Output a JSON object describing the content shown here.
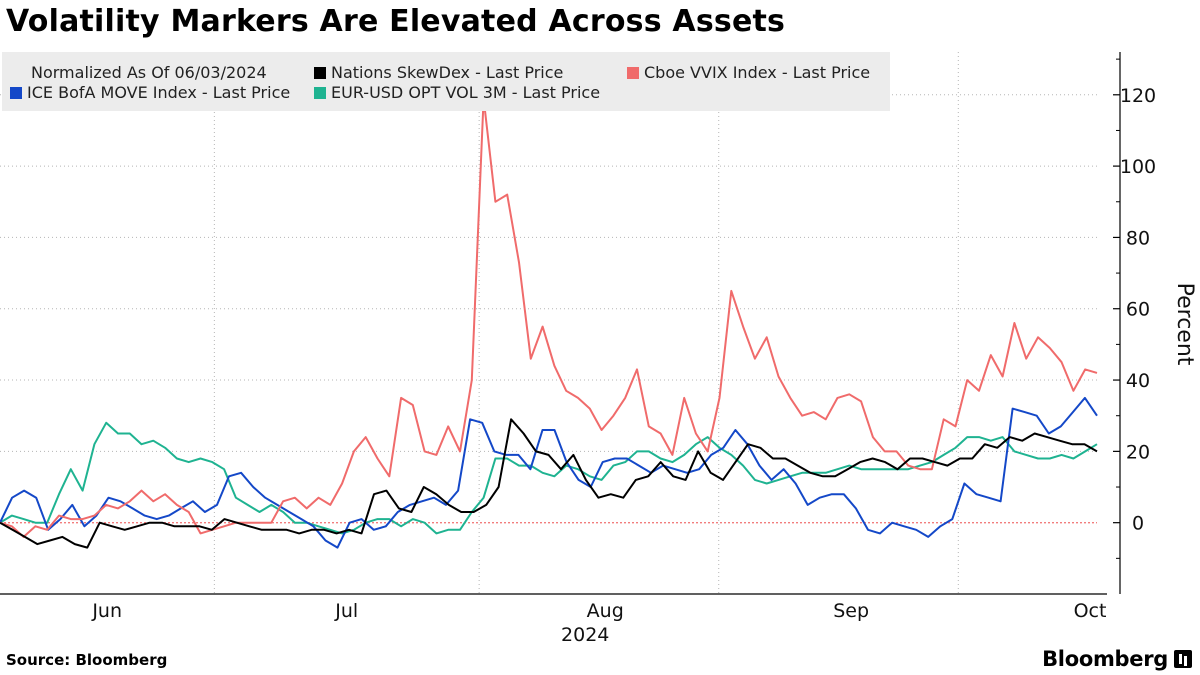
{
  "title": "Volatility Markers Are Elevated Across Assets",
  "source": "Source: Bloomberg",
  "brand": "Bloomberg",
  "chart_data": {
    "type": "line",
    "title": "Volatility Markers Are Elevated Across Assets",
    "ylabel": "Percent",
    "xlabel": "2024",
    "ylim": [
      -20,
      132
    ],
    "yticks": [
      0,
      20,
      40,
      60,
      80,
      100,
      120
    ],
    "x_range": [
      0,
      87
    ],
    "month_labels": [
      {
        "label": "Jun",
        "x": 8.5
      },
      {
        "label": "Jul",
        "x": 27.5
      },
      {
        "label": "Aug",
        "x": 48
      },
      {
        "label": "Sep",
        "x": 67.5
      },
      {
        "label": "Oct",
        "x": 87
      }
    ],
    "month_boundaries": [
      17,
      38,
      57,
      76
    ],
    "year_label": "2024",
    "legend_note": "Normalized As Of 06/03/2024",
    "legend": [
      "Nations SkewDex - Last Price",
      "Cboe VVIX Index - Last Price",
      "ICE BofA MOVE Index - Last Price",
      "EUR-USD OPT VOL 3M - Last Price"
    ],
    "series": [
      {
        "name": "Nations SkewDex - Last Price",
        "color": "#000000",
        "values": [
          0,
          -2,
          -4,
          -6,
          -5,
          -4,
          -6,
          -7,
          0,
          -1,
          -2,
          -1,
          0,
          0,
          -1,
          -1,
          -1,
          -2,
          1,
          0,
          -1,
          -2,
          -2,
          -2,
          -3,
          -2,
          -2,
          -3,
          -2,
          -3,
          8,
          9,
          4,
          3,
          10,
          8,
          5,
          3,
          3,
          5,
          10,
          29,
          25,
          20,
          19,
          15,
          19,
          12,
          7,
          8,
          7,
          12,
          13,
          17,
          13,
          12,
          20,
          14,
          12,
          17,
          22,
          21,
          18,
          18,
          16,
          14,
          13,
          13,
          15,
          17,
          18,
          17,
          15,
          18,
          18,
          17,
          16,
          18,
          18,
          22,
          21,
          24,
          23,
          25,
          24,
          23,
          22,
          22,
          20
        ]
      },
      {
        "name": "Cboe VVIX Index - Last Price",
        "color": "#f06b6b",
        "values": [
          0,
          -1,
          -4,
          -1,
          -2,
          2,
          1,
          1,
          2,
          5,
          4,
          6,
          9,
          6,
          8,
          5,
          3,
          -3,
          -2,
          -1,
          0,
          0,
          0,
          0,
          6,
          7,
          4,
          7,
          5,
          11,
          20,
          24,
          18,
          13,
          35,
          33,
          20,
          19,
          27,
          20,
          40,
          119,
          90,
          92,
          73,
          46,
          55,
          44,
          37,
          35,
          32,
          26,
          30,
          35,
          43,
          27,
          25,
          19,
          35,
          25,
          20,
          35,
          65,
          55,
          46,
          52,
          41,
          35,
          30,
          31,
          29,
          35,
          36,
          34,
          24,
          20,
          20,
          16,
          15,
          15,
          29,
          27,
          40,
          37,
          47,
          41,
          56,
          46,
          52,
          49,
          45,
          37,
          43,
          42
        ]
      },
      {
        "name": "ICE BofA MOVE Index - Last Price",
        "color": "#1448c8",
        "values": [
          0,
          7,
          9,
          7,
          -2,
          1,
          5,
          -1,
          2,
          7,
          6,
          4,
          2,
          1,
          2,
          4,
          6,
          3,
          5,
          13,
          14,
          10,
          7,
          5,
          3,
          1,
          -1,
          -5,
          -7,
          0,
          1,
          -2,
          -1,
          3,
          5,
          6,
          7,
          5,
          9,
          29,
          28,
          20,
          19,
          19,
          15,
          26,
          26,
          17,
          12,
          10,
          17,
          18,
          18,
          16,
          14,
          16,
          15,
          14,
          15,
          19,
          21,
          26,
          22,
          16,
          12,
          15,
          11,
          5,
          7,
          8,
          8,
          4,
          -2,
          -3,
          0,
          -1,
          -2,
          -4,
          -1,
          1,
          11,
          8,
          7,
          6,
          32,
          31,
          30,
          25,
          27,
          31,
          35,
          30
        ]
      },
      {
        "name": "EUR-USD OPT VOL 3M - Last Price",
        "color": "#1fb391",
        "values": [
          0,
          2,
          1,
          0,
          0,
          8,
          15,
          9,
          22,
          28,
          25,
          25,
          22,
          23,
          21,
          18,
          17,
          18,
          17,
          15,
          7,
          5,
          3,
          5,
          3,
          0,
          0,
          -1,
          -2,
          -3,
          -2,
          0,
          1,
          1,
          -1,
          1,
          0,
          -3,
          -2,
          -2,
          3,
          7,
          18,
          18,
          16,
          16,
          14,
          13,
          16,
          15,
          13,
          12,
          16,
          17,
          20,
          20,
          18,
          17,
          19,
          22,
          24,
          21,
          19,
          16,
          12,
          11,
          12,
          13,
          14,
          14,
          14,
          15,
          16,
          15,
          15,
          15,
          15,
          15,
          16,
          17,
          19,
          21,
          24,
          24,
          23,
          24,
          20,
          19,
          18,
          18,
          19,
          18,
          20,
          22
        ]
      }
    ]
  }
}
